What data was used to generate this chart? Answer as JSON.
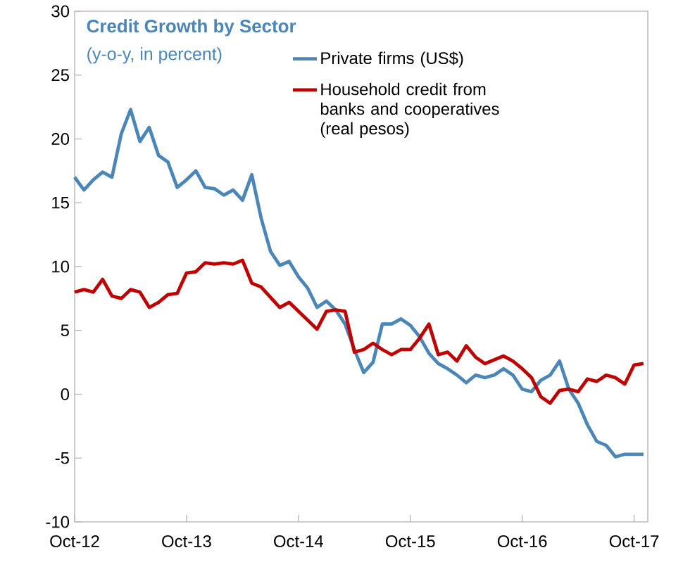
{
  "chart_data": {
    "type": "line",
    "title": "Credit Growth by Sector",
    "subtitle": "(y-o-y, in percent)",
    "x": [
      "2012-10",
      "2012-11",
      "2012-12",
      "2013-01",
      "2013-02",
      "2013-03",
      "2013-04",
      "2013-05",
      "2013-06",
      "2013-07",
      "2013-08",
      "2013-09",
      "2013-10",
      "2013-11",
      "2013-12",
      "2014-01",
      "2014-02",
      "2014-03",
      "2014-04",
      "2014-05",
      "2014-06",
      "2014-07",
      "2014-08",
      "2014-09",
      "2014-10",
      "2014-11",
      "2014-12",
      "2015-01",
      "2015-02",
      "2015-03",
      "2015-04",
      "2015-05",
      "2015-06",
      "2015-07",
      "2015-08",
      "2015-09",
      "2015-10",
      "2015-11",
      "2015-12",
      "2016-01",
      "2016-02",
      "2016-03",
      "2016-04",
      "2016-05",
      "2016-06",
      "2016-07",
      "2016-08",
      "2016-09",
      "2016-10",
      "2016-11",
      "2016-12",
      "2017-01",
      "2017-02",
      "2017-03",
      "2017-04",
      "2017-05",
      "2017-06",
      "2017-07",
      "2017-08",
      "2017-09",
      "2017-10",
      "2017-11"
    ],
    "series": [
      {
        "name": "Private firms (US$)",
        "color": "#4a86b8",
        "values": [
          17.0,
          16.0,
          16.8,
          17.4,
          17.0,
          20.4,
          22.3,
          19.8,
          20.9,
          18.7,
          18.2,
          16.2,
          16.8,
          17.5,
          16.2,
          16.1,
          15.6,
          16.0,
          15.2,
          17.2,
          13.8,
          11.2,
          10.1,
          10.4,
          9.2,
          8.3,
          6.8,
          7.3,
          6.6,
          5.5,
          3.5,
          1.7,
          2.5,
          5.5,
          5.5,
          5.9,
          5.4,
          4.5,
          3.2,
          2.4,
          2.0,
          1.5,
          0.9,
          1.5,
          1.3,
          1.5,
          2.0,
          1.5,
          0.4,
          0.2,
          1.1,
          1.5,
          2.6,
          0.4,
          -0.7,
          -2.4,
          -3.7,
          -4.0,
          -4.9,
          -4.7,
          -4.7,
          -4.7
        ]
      },
      {
        "name": "Household credit from banks and cooperatives (real pesos)",
        "color": "#c00000",
        "values": [
          8.0,
          8.2,
          8.0,
          9.0,
          7.7,
          7.5,
          8.2,
          8.0,
          6.8,
          7.2,
          7.8,
          7.9,
          9.5,
          9.6,
          10.3,
          10.2,
          10.3,
          10.2,
          10.5,
          8.7,
          8.4,
          7.6,
          6.8,
          7.2,
          6.5,
          5.8,
          5.1,
          6.5,
          6.6,
          6.5,
          3.3,
          3.5,
          4.0,
          3.5,
          3.1,
          3.5,
          3.5,
          4.4,
          5.5,
          3.1,
          3.3,
          2.6,
          3.8,
          2.9,
          2.4,
          2.7,
          3.0,
          2.6,
          2.0,
          1.3,
          -0.2,
          -0.7,
          0.3,
          0.4,
          0.2,
          1.2,
          1.0,
          1.5,
          1.3,
          0.8,
          2.3,
          2.4
        ]
      }
    ],
    "xlim": [
      "2012-10",
      "2017-11-15"
    ],
    "xticks": [
      {
        "value": "2012-10",
        "label": "Oct-12"
      },
      {
        "value": "2013-10",
        "label": "Oct-13"
      },
      {
        "value": "2014-10",
        "label": "Oct-14"
      },
      {
        "value": "2015-10",
        "label": "Oct-15"
      },
      {
        "value": "2016-10",
        "label": "Oct-16"
      },
      {
        "value": "2017-10",
        "label": "Oct-17"
      }
    ],
    "ylim": [
      -10,
      30
    ],
    "yticks": [
      -10,
      -5,
      0,
      5,
      10,
      15,
      20,
      25,
      30
    ],
    "legend": "top right",
    "grid": false,
    "marker": "none",
    "line_style": "solid"
  }
}
